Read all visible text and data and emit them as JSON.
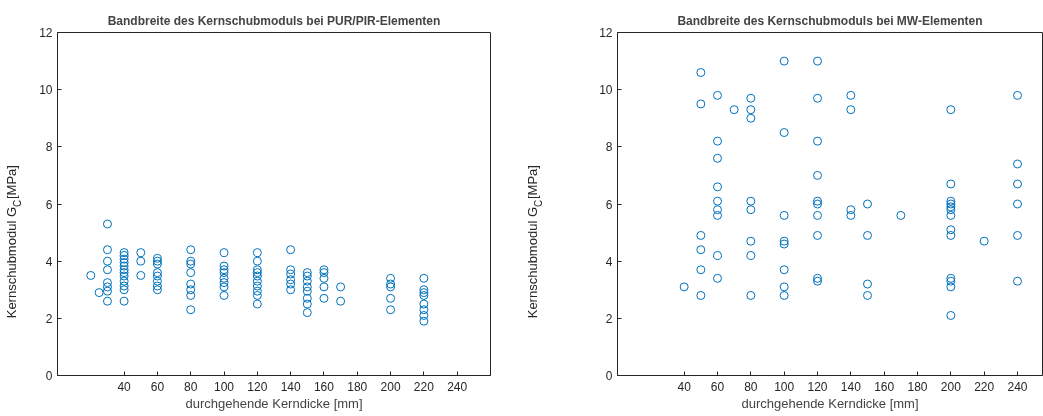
{
  "chart_data": [
    {
      "type": "scatter",
      "title": "Bandbreite des Kernschubmoduls bei PUR/PIR-Elementen",
      "xlabel": "durchgehende Kerndicke [mm]",
      "ylabel": "Kernschubmodul G$_{C}$[MPa]",
      "marker": "circle",
      "xlim": [
        0,
        260
      ],
      "ylim": [
        0,
        12
      ],
      "xticks": [
        40,
        60,
        80,
        100,
        120,
        140,
        160,
        180,
        200,
        220,
        240
      ],
      "yticks": [
        0,
        2,
        4,
        6,
        8,
        10,
        12
      ],
      "series": [
        {
          "color": "#0072bd",
          "x": [
            20,
            25,
            30,
            30,
            30,
            30,
            30,
            30,
            30,
            30,
            40,
            40,
            40,
            40,
            40,
            40,
            40,
            40,
            40,
            40,
            40,
            40,
            50,
            50,
            50,
            60,
            60,
            60,
            60,
            60,
            60,
            60,
            60,
            80,
            80,
            80,
            80,
            80,
            80,
            80,
            80,
            100,
            100,
            100,
            100,
            100,
            100,
            100,
            100,
            120,
            120,
            120,
            120,
            120,
            120,
            120,
            120,
            120,
            120,
            140,
            140,
            140,
            140,
            140,
            140,
            150,
            150,
            150,
            150,
            150,
            150,
            150,
            150,
            160,
            160,
            160,
            160,
            160,
            170,
            170,
            200,
            200,
            200,
            200,
            200,
            220,
            220,
            220,
            220,
            220,
            220,
            220,
            220
          ],
          "values": [
            3.5,
            2.9,
            5.3,
            4.4,
            4.0,
            3.7,
            3.25,
            3.1,
            2.95,
            2.6,
            4.3,
            4.2,
            4.07,
            3.95,
            3.83,
            3.7,
            3.6,
            3.48,
            3.3,
            3.13,
            3.0,
            2.6,
            4.3,
            4.0,
            3.5,
            4.1,
            4.0,
            3.9,
            3.6,
            3.48,
            3.3,
            3.13,
            3.0,
            4.4,
            4.0,
            3.9,
            3.6,
            3.2,
            3.0,
            2.8,
            2.3,
            4.3,
            3.83,
            3.7,
            3.6,
            3.4,
            3.25,
            3.1,
            2.8,
            4.3,
            4.0,
            3.7,
            3.6,
            3.48,
            3.3,
            3.13,
            2.95,
            2.8,
            2.5,
            4.4,
            3.7,
            3.55,
            3.35,
            3.2,
            3.0,
            3.6,
            3.48,
            3.3,
            3.1,
            2.95,
            2.7,
            2.5,
            2.2,
            3.7,
            3.6,
            3.4,
            3.1,
            2.7,
            3.1,
            2.6,
            3.4,
            3.2,
            3.1,
            2.7,
            2.3,
            3.4,
            3.0,
            2.9,
            2.8,
            2.5,
            2.3,
            2.1,
            1.9
          ]
        }
      ]
    },
    {
      "type": "scatter",
      "title": "Bandbreite des Kernschubmoduls bei MW-Elementen",
      "xlabel": "durchgehende Kerndicke [mm]",
      "ylabel": "Kernschubmodul G$_{C}$[MPa]",
      "marker": "circle",
      "xlim": [
        0,
        255
      ],
      "ylim": [
        0,
        12
      ],
      "xticks": [
        40,
        60,
        80,
        100,
        120,
        140,
        160,
        180,
        200,
        220,
        240
      ],
      "yticks": [
        0,
        2,
        4,
        6,
        8,
        10,
        12
      ],
      "series": [
        {
          "color": "#0072bd",
          "x": [
            40,
            50,
            50,
            50,
            50,
            50,
            50,
            60,
            60,
            60,
            60,
            60,
            60,
            60,
            60,
            60,
            70,
            80,
            80,
            80,
            80,
            80,
            80,
            80,
            80,
            100,
            100,
            100,
            100,
            100,
            100,
            100,
            100,
            120,
            120,
            120,
            120,
            120,
            120,
            120,
            120,
            120,
            120,
            140,
            140,
            140,
            140,
            150,
            150,
            150,
            150,
            170,
            200,
            200,
            200,
            200,
            200,
            200,
            200,
            200,
            200,
            200,
            200,
            200,
            200,
            220,
            240,
            240,
            240,
            240,
            240,
            240
          ],
          "values": [
            3.1,
            10.6,
            9.5,
            4.9,
            4.4,
            3.7,
            2.8,
            9.8,
            8.2,
            7.6,
            6.6,
            6.1,
            5.8,
            5.6,
            4.2,
            3.4,
            9.3,
            9.7,
            9.3,
            9.0,
            6.1,
            5.8,
            4.7,
            4.2,
            2.8,
            11.0,
            8.5,
            5.6,
            4.7,
            4.6,
            3.7,
            3.1,
            2.8,
            11.0,
            9.7,
            8.2,
            7.0,
            6.1,
            6.0,
            5.6,
            4.9,
            3.4,
            3.3,
            9.8,
            9.3,
            5.8,
            5.6,
            6.0,
            4.9,
            3.2,
            2.8,
            5.6,
            9.3,
            6.7,
            6.1,
            6.0,
            5.9,
            5.8,
            5.6,
            5.1,
            4.9,
            3.4,
            3.3,
            3.1,
            2.1,
            4.7,
            9.8,
            7.4,
            6.7,
            6.0,
            4.9,
            3.3
          ]
        }
      ]
    }
  ]
}
